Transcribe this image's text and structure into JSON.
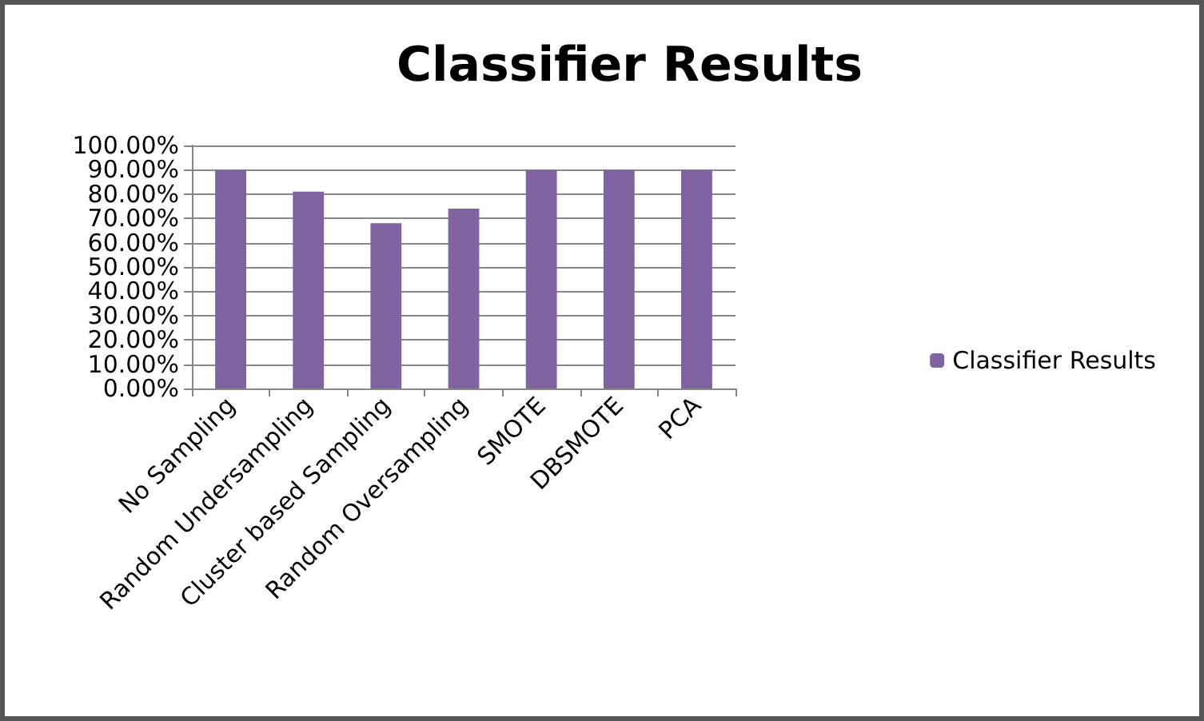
{
  "chart_data": {
    "type": "bar",
    "title": "Classifier Results",
    "categories": [
      "No Sampling",
      "Random Undersampling",
      "Cluster based Sampling",
      "Random Oversampling",
      "SMOTE",
      "DBSMOTE",
      "PCA"
    ],
    "series": [
      {
        "name": "Classifier Results",
        "color": "#8064a2",
        "values": [
          90,
          81,
          68,
          74,
          90,
          90,
          90
        ]
      }
    ],
    "ylim": [
      0,
      100
    ],
    "yticks": [
      {
        "value": 0,
        "label": "0.00%"
      },
      {
        "value": 10,
        "label": "10.00%"
      },
      {
        "value": 20,
        "label": "20.00%"
      },
      {
        "value": 30,
        "label": "30.00%"
      },
      {
        "value": 40,
        "label": "40.00%"
      },
      {
        "value": 50,
        "label": "50.00%"
      },
      {
        "value": 60,
        "label": "60.00%"
      },
      {
        "value": 70,
        "label": "70.00%"
      },
      {
        "value": 80,
        "label": "80.00%"
      },
      {
        "value": 90,
        "label": "90.00%"
      },
      {
        "value": 100,
        "label": "100.00%"
      }
    ],
    "grid": "y",
    "legend": "right"
  }
}
